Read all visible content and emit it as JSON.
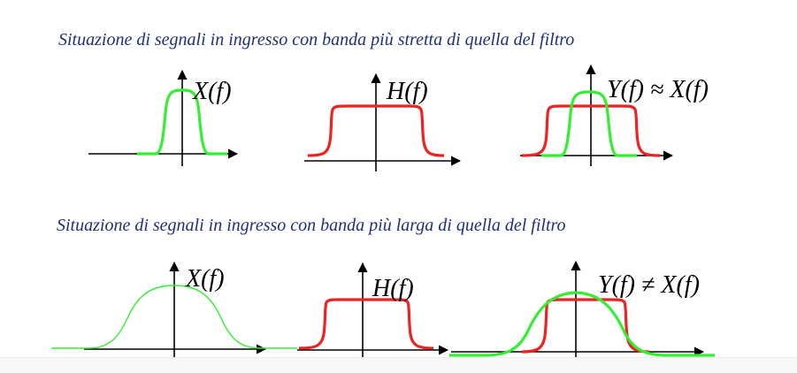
{
  "captions": {
    "top": "Situazione di segnali in ingresso con banda più stretta di quella del  filtro",
    "bottom": "Situazione di segnali in ingresso con banda più larga di quella del  filtro"
  },
  "labels": {
    "x_f": "X(f)",
    "h_f": "H(f)",
    "y_approx": "Y(f) ≈ X(f)",
    "y_neq": "Y(f) ≠ X(f)"
  },
  "colors": {
    "input_signal": "#33ee33",
    "filter": "#ee2222",
    "caption_text": "#1f2f7a"
  }
}
